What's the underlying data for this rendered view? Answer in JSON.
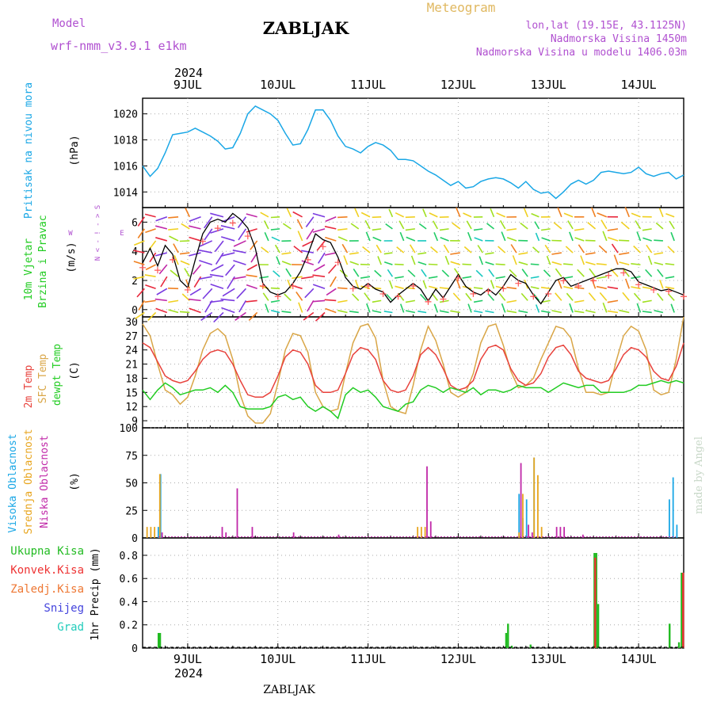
{
  "header": {
    "title": "ZABLJAK",
    "model_label": "Model",
    "model_value": "wrf-nmm_v3.9.1 e1km",
    "meteogram_label": "Meteogram",
    "coords": "lon,lat (19.15E, 43.1125N)",
    "elevation": "Nadmorska Visina 1450m",
    "model_elevation": "Nadmorska Visina u modelu 1406.03m",
    "year": "2024",
    "bottom_title": "ZABLJAK",
    "credit": "made by Angel"
  },
  "days": [
    "9JUL",
    "10JUL",
    "11JUL",
    "12JUL",
    "13JUL",
    "14JUL"
  ],
  "panels": {
    "pressure": {
      "label": "Pritisak na nivou mora",
      "unit": "(hPa)"
    },
    "wind": {
      "label1": "10m Vjetar",
      "label2": "Brzina i Pravac",
      "unit": "(m/s)",
      "compass_n": "N",
      "compass_w": "W",
      "compass_e": "E",
      "compass_s": "S"
    },
    "temp": {
      "label1": "2m Temp",
      "label2": "SFC Temp",
      "label3": "dewpt Temp",
      "unit": "(C)"
    },
    "cloud": {
      "label1": "Visoka Oblacnost",
      "label2": "Srednja Oblacnost",
      "label3": "Niska Oblacnost",
      "unit": "(%)"
    },
    "precip": {
      "legend": [
        "Ukupna Kisa",
        "Konvek.Kisa",
        "Zaledj.Kisa",
        "Snijeg",
        "Grad"
      ],
      "unit": "1hr Precip (mm)"
    }
  },
  "colors": {
    "pressure": "#1aa7e6",
    "temp2m": "#e8423c",
    "sfc": "#d9a647",
    "dewpt": "#22cc22",
    "high_cloud": "#1aa7e6",
    "mid_cloud": "#e8a620",
    "low_cloud": "#c028a8",
    "rain": "#22bb22",
    "conv": "#ee3333",
    "frz": "#ee7733",
    "snow": "#4444dd",
    "hail": "#22ccbb",
    "purple_text": "#b050d0",
    "orange_text": "#e0b860"
  },
  "chart_data": [
    {
      "type": "line",
      "title": "Pritisak na nivou mora",
      "ylabel": "(hPa)",
      "ylim": [
        1012.8,
        1021.2
      ],
      "yticks": [
        1014,
        1016,
        1018,
        1020
      ],
      "x_unit": "hours since 8JUL 12UTC",
      "xlim": [
        0,
        144
      ],
      "series": [
        {
          "name": "Pritisak",
          "x": [
            0,
            2,
            4,
            6,
            8,
            10,
            12,
            14,
            16,
            18,
            20,
            22,
            24,
            26,
            28,
            30,
            32,
            34,
            36,
            38,
            40,
            42,
            44,
            46,
            48,
            50,
            52,
            54,
            56,
            58,
            60,
            62,
            64,
            66,
            68,
            70,
            72,
            74,
            76,
            78,
            80,
            82,
            84,
            86,
            88,
            90,
            92,
            94,
            96,
            98,
            100,
            102,
            104,
            106,
            108,
            110,
            112,
            114,
            116,
            118,
            120,
            122,
            124,
            126,
            128,
            130,
            132,
            134,
            136,
            138,
            140,
            142,
            144
          ],
          "y": [
            1016.0,
            1015.2,
            1015.8,
            1017.0,
            1018.4,
            1018.5,
            1018.6,
            1018.9,
            1018.6,
            1018.3,
            1017.9,
            1017.3,
            1017.4,
            1018.5,
            1020.0,
            1020.6,
            1020.3,
            1020.0,
            1019.5,
            1018.5,
            1017.6,
            1017.7,
            1018.8,
            1020.3,
            1020.3,
            1019.5,
            1018.3,
            1017.5,
            1017.3,
            1017.0,
            1017.5,
            1017.8,
            1017.6,
            1017.2,
            1016.5,
            1016.5,
            1016.4,
            1016.0,
            1015.6,
            1015.3,
            1014.9,
            1014.5,
            1014.8,
            1014.3,
            1014.4,
            1014.8,
            1015.0,
            1015.1,
            1015.0,
            1014.7,
            1014.3,
            1014.8,
            1014.2,
            1013.9,
            1014.0,
            1013.5,
            1014.0,
            1014.6,
            1014.9,
            1014.6,
            1014.9,
            1015.5,
            1015.6,
            1015.5,
            1015.4,
            1015.5,
            1015.9,
            1015.4,
            1015.2,
            1015.4,
            1015.5,
            1015.0,
            1015.3
          ]
        }
      ]
    },
    {
      "type": "line",
      "title": "10m Vjetar Brzina i Pravac",
      "ylabel": "(m/s)",
      "ylim": [
        -0.5,
        7
      ],
      "yticks": [
        0,
        2,
        4,
        6
      ],
      "x_unit": "hours since 8JUL 12UTC",
      "xlim": [
        0,
        144
      ],
      "series": [
        {
          "name": "speed",
          "x": [
            0,
            2,
            4,
            6,
            8,
            10,
            12,
            14,
            16,
            18,
            20,
            22,
            24,
            26,
            28,
            30,
            32,
            34,
            36,
            38,
            40,
            42,
            44,
            46,
            48,
            50,
            52,
            54,
            56,
            58,
            60,
            62,
            64,
            66,
            68,
            70,
            72,
            74,
            76,
            78,
            80,
            82,
            84,
            86,
            88,
            90,
            92,
            94,
            96,
            98,
            100,
            102,
            104,
            106,
            108,
            110,
            112,
            114,
            116,
            118,
            120,
            122,
            124,
            126,
            128,
            130,
            132,
            134,
            136,
            138,
            140,
            142,
            144
          ],
          "y": [
            3.2,
            4.2,
            3.0,
            4.4,
            3.8,
            2.0,
            1.5,
            3.4,
            5.2,
            6.0,
            6.2,
            6.0,
            6.6,
            6.2,
            5.6,
            4.2,
            1.8,
            1.2,
            1.0,
            1.2,
            1.8,
            2.6,
            3.8,
            5.2,
            4.8,
            4.6,
            3.6,
            2.2,
            1.6,
            1.4,
            1.8,
            1.4,
            1.2,
            0.5,
            1.0,
            1.4,
            1.8,
            1.4,
            0.6,
            1.4,
            0.8,
            1.6,
            2.4,
            1.6,
            1.2,
            1.0,
            1.4,
            1.0,
            1.6,
            2.4,
            2.0,
            1.8,
            1.0,
            0.4,
            1.2,
            2.0,
            2.2,
            1.6,
            1.8,
            2.0,
            2.2,
            2.4,
            2.6,
            2.8,
            2.8,
            2.6,
            1.9,
            1.7,
            1.5,
            1.3,
            1.4,
            1.2,
            1.0
          ]
        }
      ],
      "compass_legend": "N W E S"
    },
    {
      "type": "line",
      "title": "2m Temp / SFC Temp / dewpt Temp",
      "ylabel": "(C)",
      "ylim": [
        7.5,
        31
      ],
      "yticks": [
        9,
        12,
        15,
        18,
        21,
        24,
        27,
        30
      ],
      "x_unit": "hours since 8JUL 12UTC",
      "xlim": [
        0,
        144
      ],
      "series": [
        {
          "name": "2m Temp",
          "x": [
            0,
            2,
            4,
            6,
            8,
            10,
            12,
            14,
            16,
            18,
            20,
            22,
            24,
            26,
            28,
            30,
            32,
            34,
            36,
            38,
            40,
            42,
            44,
            46,
            48,
            50,
            52,
            54,
            56,
            58,
            60,
            62,
            64,
            66,
            68,
            70,
            72,
            74,
            76,
            78,
            80,
            82,
            84,
            86,
            88,
            90,
            92,
            94,
            96,
            98,
            100,
            102,
            104,
            106,
            108,
            110,
            112,
            114,
            116,
            118,
            120,
            122,
            124,
            126,
            128,
            130,
            132,
            134,
            136,
            138,
            140,
            142,
            144
          ],
          "y": [
            25.5,
            24.5,
            21.5,
            18.5,
            17.5,
            17.0,
            17.5,
            19.5,
            22.0,
            23.5,
            24.0,
            23.5,
            21.0,
            17.5,
            14.5,
            14.0,
            14.0,
            15.0,
            18.5,
            22.5,
            24.0,
            23.5,
            21.0,
            16.5,
            15.0,
            15.0,
            15.5,
            19.0,
            23.0,
            24.5,
            24.0,
            22.0,
            17.5,
            15.5,
            15.0,
            15.5,
            18.5,
            23.0,
            24.5,
            23.0,
            20.0,
            16.5,
            15.5,
            16.0,
            17.5,
            22.0,
            24.5,
            25.0,
            24.0,
            20.0,
            17.5,
            16.5,
            17.0,
            19.0,
            22.5,
            24.5,
            25.0,
            23.0,
            19.5,
            18.0,
            17.5,
            17.0,
            17.5,
            20.0,
            23.0,
            24.5,
            24.0,
            22.5,
            19.5,
            18.0,
            17.5,
            20.5,
            25.5
          ]
        },
        {
          "name": "SFC Temp",
          "x": [
            0,
            2,
            4,
            6,
            8,
            10,
            12,
            14,
            16,
            18,
            20,
            22,
            24,
            26,
            28,
            30,
            32,
            34,
            36,
            38,
            40,
            42,
            44,
            46,
            48,
            50,
            52,
            54,
            56,
            58,
            60,
            62,
            64,
            66,
            68,
            70,
            72,
            74,
            76,
            78,
            80,
            82,
            84,
            86,
            88,
            90,
            92,
            94,
            96,
            98,
            100,
            102,
            104,
            106,
            108,
            110,
            112,
            114,
            116,
            118,
            120,
            122,
            124,
            126,
            128,
            130,
            132,
            134,
            136,
            138,
            140,
            142,
            144
          ],
          "y": [
            29.5,
            27.0,
            21.0,
            15.5,
            14.5,
            12.5,
            14.0,
            18.5,
            24.0,
            27.5,
            28.5,
            27.0,
            22.0,
            14.5,
            10.0,
            8.5,
            8.5,
            10.5,
            17.0,
            24.0,
            27.5,
            27.0,
            23.5,
            15.0,
            12.0,
            11.0,
            11.5,
            19.0,
            25.5,
            29.0,
            29.5,
            26.5,
            17.5,
            12.0,
            11.0,
            10.5,
            16.5,
            24.0,
            29.0,
            26.0,
            21.0,
            15.0,
            14.0,
            15.0,
            19.0,
            25.5,
            29.0,
            29.5,
            25.0,
            19.5,
            16.0,
            16.5,
            18.0,
            22.0,
            25.5,
            29.0,
            28.5,
            26.5,
            20.0,
            15.0,
            15.0,
            14.5,
            15.0,
            21.5,
            27.0,
            29.0,
            28.0,
            24.0,
            15.5,
            14.5,
            15.0,
            22.0,
            31.0
          ]
        },
        {
          "name": "dewpt Temp",
          "x": [
            0,
            2,
            4,
            6,
            8,
            10,
            12,
            14,
            16,
            18,
            20,
            22,
            24,
            26,
            28,
            30,
            32,
            34,
            36,
            38,
            40,
            42,
            44,
            46,
            48,
            50,
            52,
            54,
            56,
            58,
            60,
            62,
            64,
            66,
            68,
            70,
            72,
            74,
            76,
            78,
            80,
            82,
            84,
            86,
            88,
            90,
            92,
            94,
            96,
            98,
            100,
            102,
            104,
            106,
            108,
            110,
            112,
            114,
            116,
            118,
            120,
            122,
            124,
            126,
            128,
            130,
            132,
            134,
            136,
            138,
            140,
            142,
            144
          ],
          "y": [
            15.5,
            13.5,
            15.5,
            17.0,
            16.0,
            14.5,
            15.0,
            15.5,
            15.5,
            16.0,
            15.0,
            16.5,
            15.0,
            12.0,
            11.5,
            11.5,
            11.5,
            12.0,
            14.0,
            14.5,
            13.5,
            14.0,
            12.0,
            11.0,
            12.0,
            11.0,
            9.5,
            14.5,
            16.0,
            15.0,
            15.5,
            14.0,
            12.0,
            11.5,
            11.0,
            12.5,
            13.0,
            15.5,
            16.5,
            16.0,
            15.0,
            16.0,
            15.5,
            15.0,
            16.0,
            14.5,
            15.5,
            15.5,
            15.0,
            15.5,
            16.5,
            16.0,
            16.0,
            16.0,
            15.0,
            16.0,
            17.0,
            16.5,
            16.0,
            16.5,
            16.5,
            15.0,
            15.0,
            15.0,
            15.0,
            15.5,
            16.5,
            16.5,
            17.0,
            17.5,
            17.0,
            17.5,
            17.0
          ]
        }
      ]
    },
    {
      "type": "bar",
      "title": "Oblacnost",
      "ylabel": "(%)",
      "ylim": [
        0,
        100
      ],
      "yticks": [
        0,
        25,
        50,
        75,
        100
      ],
      "x_unit": "hours since 8JUL 12UTC",
      "xlim": [
        0,
        144
      ],
      "series": [
        {
          "name": "Visoka Oblacnost",
          "x": [
            4,
            4.6,
            100,
            101,
            102,
            104,
            140,
            141,
            142
          ],
          "values": [
            10,
            58,
            40,
            18,
            35,
            73,
            35,
            55,
            12
          ]
        },
        {
          "name": "Srednja Oblacnost",
          "x": [
            1,
            2,
            3,
            4.4,
            73,
            74,
            75,
            100,
            101,
            104,
            105,
            106
          ],
          "values": [
            10,
            10,
            10,
            58,
            10,
            10,
            10,
            5,
            40,
            73,
            57,
            10
          ]
        },
        {
          "name": "Niska Oblacnost",
          "x": [
            5,
            21,
            22,
            25,
            29,
            40,
            52,
            75.5,
            76.5,
            100.5,
            102.5,
            103.5,
            110,
            111,
            112,
            117
          ],
          "values": [
            5,
            10,
            5,
            45,
            10,
            5,
            3,
            65,
            15,
            68,
            12,
            5,
            10,
            10,
            10,
            3
          ]
        }
      ]
    },
    {
      "type": "bar",
      "title": "1hr Precip",
      "ylabel": "1hr Precip (mm)",
      "ylim": [
        0,
        0.95
      ],
      "yticks": [
        0,
        0.2,
        0.4,
        0.6,
        0.8
      ],
      "x_unit": "hours since 8JUL 12UTC",
      "xlim": [
        0,
        144
      ],
      "series": [
        {
          "name": "Ukupna Kisa",
          "x": [
            4,
            4.4,
            96.5,
            97,
            98,
            103,
            120,
            120.5,
            121,
            140,
            142.5,
            143.2
          ],
          "values": [
            0.13,
            0.13,
            0.13,
            0.21,
            0.02,
            0.03,
            0.82,
            0.82,
            0.38,
            0.21,
            0.05,
            0.65
          ]
        },
        {
          "name": "Konvek.Kisa",
          "x": [
            120.2,
            143.6
          ],
          "values": [
            0.78,
            0.65
          ]
        }
      ]
    }
  ]
}
